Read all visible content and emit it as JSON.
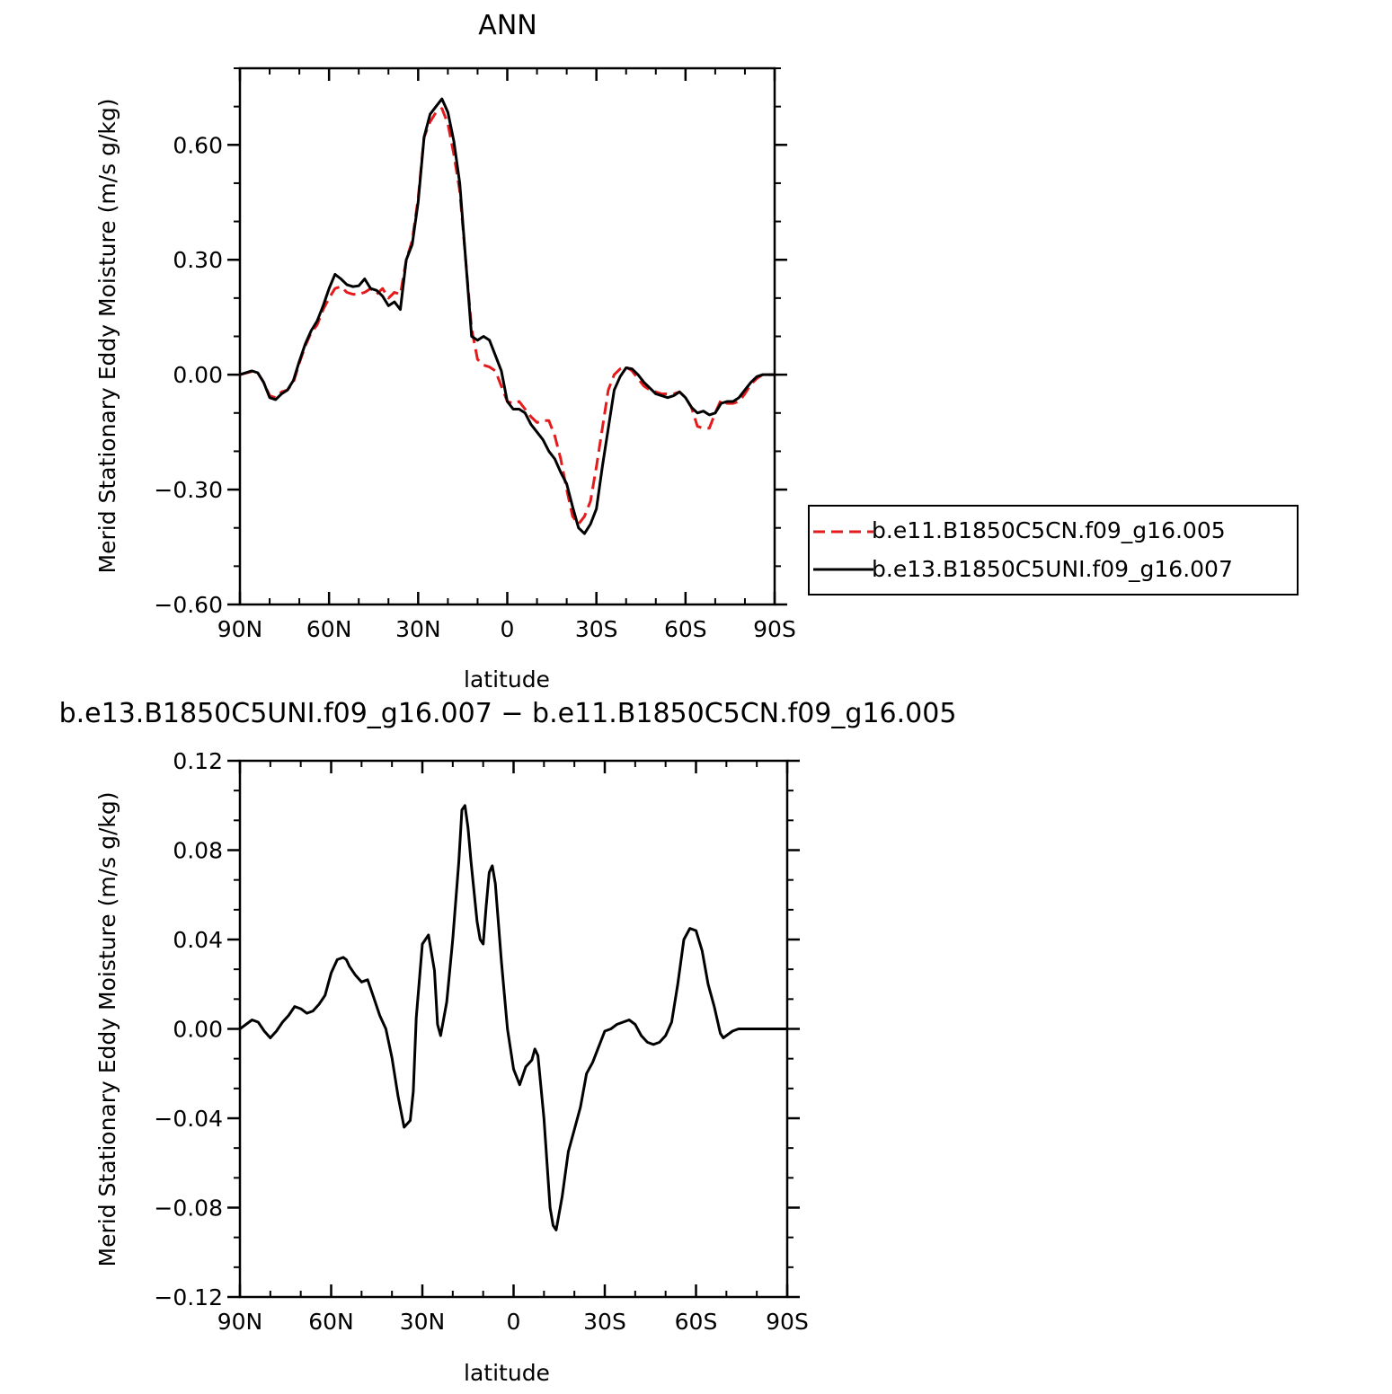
{
  "chart_data": [
    {
      "type": "line",
      "title": "ANN",
      "xlabel": "latitude",
      "ylabel": "Merid Stationary Eddy Moisture (m/s g/kg)",
      "xlim": [
        90,
        -90
      ],
      "ylim": [
        -0.6,
        0.8
      ],
      "x_ticks": [
        90,
        60,
        30,
        0,
        -30,
        -60,
        -90
      ],
      "x_tick_labels": [
        "90N",
        "60N",
        "30N",
        "0",
        "30S",
        "60S",
        "90S"
      ],
      "y_ticks": [
        -0.6,
        -0.3,
        0.0,
        0.3,
        0.6
      ],
      "y_tick_labels": [
        "−0.60",
        "−0.30",
        "0.00",
        "0.30",
        "0.60"
      ],
      "grid": false,
      "legend_position": "right",
      "series": [
        {
          "name": "b.e11.B1850C5CN.f09_g16.005",
          "color": "#e41a1c",
          "dash": "dashed",
          "x": [
            90,
            86,
            84,
            82,
            80,
            78,
            76,
            74,
            72,
            70,
            68,
            66,
            64,
            62,
            60,
            58,
            56,
            54,
            52,
            50,
            48,
            46,
            44,
            42,
            40,
            38,
            36,
            34,
            32,
            30,
            28,
            26,
            24,
            22,
            20,
            18,
            16,
            14,
            12,
            10,
            8,
            6,
            4,
            2,
            0,
            -2,
            -4,
            -6,
            -8,
            -10,
            -12,
            -14,
            -16,
            -18,
            -20,
            -22,
            -24,
            -26,
            -28,
            -30,
            -32,
            -34,
            -36,
            -38,
            -40,
            -42,
            -44,
            -46,
            -48,
            -50,
            -52,
            -54,
            -56,
            -58,
            -60,
            -62,
            -64,
            -66,
            -68,
            -70,
            -72,
            -74,
            -76,
            -78,
            -80,
            -82,
            -84,
            -86,
            -88,
            -90
          ],
          "y": [
            0.0,
            0.008,
            0.005,
            -0.02,
            -0.055,
            -0.06,
            -0.045,
            -0.04,
            -0.02,
            0.03,
            0.075,
            0.11,
            0.13,
            0.17,
            0.2,
            0.225,
            0.23,
            0.215,
            0.21,
            0.21,
            0.215,
            0.225,
            0.21,
            0.225,
            0.2,
            0.215,
            0.21,
            0.3,
            0.35,
            0.46,
            0.62,
            0.66,
            0.685,
            0.695,
            0.655,
            0.575,
            0.48,
            0.3,
            0.12,
            0.04,
            0.025,
            0.02,
            0.01,
            -0.03,
            -0.07,
            -0.075,
            -0.07,
            -0.09,
            -0.11,
            -0.125,
            -0.12,
            -0.12,
            -0.16,
            -0.22,
            -0.3,
            -0.37,
            -0.39,
            -0.37,
            -0.33,
            -0.24,
            -0.14,
            -0.04,
            0.0,
            0.015,
            0.02,
            0.01,
            -0.01,
            -0.03,
            -0.04,
            -0.045,
            -0.05,
            -0.05,
            -0.05,
            -0.045,
            -0.06,
            -0.085,
            -0.135,
            -0.14,
            -0.14,
            -0.1,
            -0.065,
            -0.075,
            -0.075,
            -0.07,
            -0.05,
            -0.025,
            -0.01,
            0.0,
            0.0,
            0.0
          ]
        },
        {
          "name": "b.e13.B1850C5UNI.f09_g16.007",
          "color": "#000000",
          "dash": "solid",
          "x": [
            90,
            86,
            84,
            82,
            80,
            78,
            76,
            74,
            72,
            70,
            68,
            66,
            64,
            62,
            60,
            58,
            56,
            54,
            52,
            50,
            48,
            46,
            44,
            42,
            40,
            38,
            36,
            34,
            32,
            30,
            28,
            26,
            24,
            22,
            20,
            18,
            16,
            14,
            12,
            10,
            8,
            6,
            4,
            2,
            0,
            -2,
            -4,
            -6,
            -8,
            -10,
            -12,
            -14,
            -16,
            -18,
            -20,
            -22,
            -24,
            -26,
            -28,
            -30,
            -32,
            -34,
            -36,
            -38,
            -40,
            -42,
            -44,
            -46,
            -48,
            -50,
            -52,
            -54,
            -56,
            -58,
            -60,
            -62,
            -64,
            -66,
            -68,
            -70,
            -72,
            -74,
            -76,
            -78,
            -80,
            -82,
            -84,
            -86,
            -88,
            -90
          ],
          "y": [
            0.0,
            0.01,
            0.005,
            -0.02,
            -0.06,
            -0.065,
            -0.05,
            -0.04,
            -0.015,
            0.035,
            0.08,
            0.115,
            0.14,
            0.18,
            0.225,
            0.262,
            0.25,
            0.235,
            0.23,
            0.232,
            0.25,
            0.225,
            0.22,
            0.205,
            0.18,
            0.19,
            0.17,
            0.3,
            0.34,
            0.45,
            0.62,
            0.68,
            0.7,
            0.72,
            0.685,
            0.61,
            0.5,
            0.3,
            0.1,
            0.09,
            0.1,
            0.09,
            0.05,
            0.01,
            -0.07,
            -0.09,
            -0.09,
            -0.1,
            -0.13,
            -0.15,
            -0.17,
            -0.2,
            -0.22,
            -0.255,
            -0.285,
            -0.345,
            -0.4,
            -0.415,
            -0.39,
            -0.35,
            -0.24,
            -0.14,
            -0.04,
            -0.005,
            0.018,
            0.015,
            0.0,
            -0.02,
            -0.035,
            -0.05,
            -0.055,
            -0.06,
            -0.055,
            -0.045,
            -0.06,
            -0.085,
            -0.1,
            -0.095,
            -0.105,
            -0.1,
            -0.075,
            -0.07,
            -0.07,
            -0.06,
            -0.04,
            -0.02,
            -0.005,
            0.0,
            0.0,
            0.0
          ]
        }
      ]
    },
    {
      "type": "line",
      "title": "b.e13.B1850C5UNI.f09_g16.007 − b.e11.B1850C5CN.f09_g16.005",
      "xlabel": "latitude",
      "ylabel": "Merid Stationary Eddy Moisture (m/s g/kg)",
      "xlim": [
        90,
        -90
      ],
      "ylim": [
        -0.12,
        0.12
      ],
      "x_ticks": [
        90,
        60,
        30,
        0,
        -30,
        -60,
        -90
      ],
      "x_tick_labels": [
        "90N",
        "60N",
        "30N",
        "0",
        "30S",
        "60S",
        "90S"
      ],
      "y_ticks": [
        -0.12,
        -0.08,
        -0.04,
        0.0,
        0.04,
        0.08,
        0.12
      ],
      "y_tick_labels": [
        "−0.12",
        "−0.08",
        "−0.04",
        "0.00",
        "0.04",
        "0.08",
        "0.12"
      ],
      "grid": false,
      "series": [
        {
          "color": "#000000",
          "dash": "solid",
          "x": [
            90,
            86,
            84,
            82,
            80,
            78,
            76,
            74,
            72,
            70,
            68,
            66,
            64,
            62,
            60,
            58,
            56,
            55,
            54,
            52,
            50,
            48,
            46,
            44,
            42,
            40,
            38,
            36,
            34,
            33,
            32,
            30,
            28,
            26,
            25,
            24,
            22,
            20,
            18,
            17,
            16,
            15,
            14,
            12,
            11,
            10,
            9,
            8,
            7,
            6,
            4,
            2,
            0,
            -2,
            -4,
            -6,
            -7,
            -8,
            -10,
            -12,
            -13,
            -14,
            -16,
            -18,
            -20,
            -22,
            -24,
            -26,
            -28,
            -30,
            -32,
            -34,
            -36,
            -38,
            -40,
            -42,
            -44,
            -46,
            -48,
            -50,
            -52,
            -54,
            -56,
            -58,
            -60,
            -62,
            -64,
            -66,
            -68,
            -69,
            -70,
            -71,
            -72,
            -74,
            -76,
            -78,
            -80,
            -82,
            -84,
            -86,
            -88,
            -90
          ],
          "y": [
            0.0,
            0.004,
            0.003,
            -0.001,
            -0.004,
            -0.001,
            0.003,
            0.006,
            0.01,
            0.009,
            0.007,
            0.008,
            0.011,
            0.015,
            0.025,
            0.031,
            0.032,
            0.031,
            0.028,
            0.024,
            0.021,
            0.022,
            0.014,
            0.006,
            0.0,
            -0.013,
            -0.03,
            -0.044,
            -0.041,
            -0.028,
            0.005,
            0.038,
            0.042,
            0.026,
            0.002,
            -0.003,
            0.012,
            0.04,
            0.075,
            0.098,
            0.1,
            0.09,
            0.075,
            0.048,
            0.04,
            0.038,
            0.055,
            0.07,
            0.073,
            0.065,
            0.03,
            0.0,
            -0.018,
            -0.025,
            -0.017,
            -0.014,
            -0.009,
            -0.012,
            -0.04,
            -0.08,
            -0.088,
            -0.09,
            -0.075,
            -0.055,
            -0.045,
            -0.035,
            -0.02,
            -0.015,
            -0.008,
            -0.001,
            0.0,
            0.002,
            0.003,
            0.004,
            0.002,
            -0.003,
            -0.006,
            -0.007,
            -0.006,
            -0.003,
            0.003,
            0.02,
            0.04,
            0.045,
            0.044,
            0.035,
            0.02,
            0.01,
            -0.002,
            -0.004,
            -0.003,
            -0.002,
            -0.001,
            0.0,
            0.0,
            0.0,
            0.0,
            0.0,
            0.0,
            0.0,
            0.0,
            0.0
          ]
        }
      ]
    }
  ]
}
